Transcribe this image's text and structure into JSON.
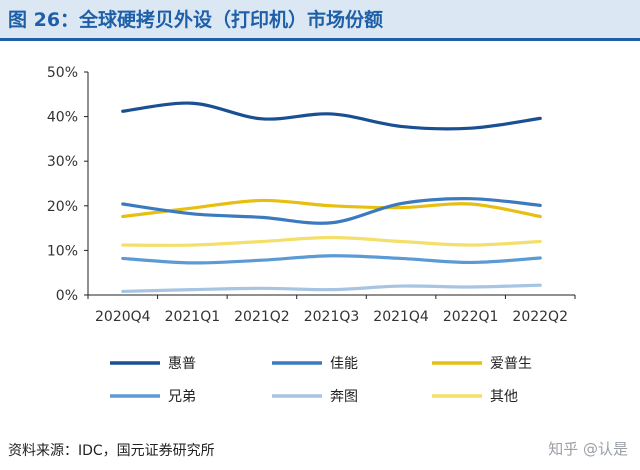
{
  "header": {
    "title": "图 26：全球硬拷贝外设（打印机）市场份额"
  },
  "footer": {
    "source": "资料来源：IDC，国元证券研究所",
    "watermark": "知乎 @认是"
  },
  "colors": {
    "title": "#1f5fa8",
    "header_bg": "#dbe8f4"
  },
  "chart_data": {
    "type": "line",
    "title": "",
    "xlabel": "",
    "ylabel": "",
    "categories": [
      "2020Q4",
      "2021Q1",
      "2021Q2",
      "2021Q3",
      "2021Q4",
      "2022Q1",
      "2022Q2"
    ],
    "ylim": [
      0,
      50
    ],
    "yticks": [
      0,
      10,
      20,
      30,
      40,
      50
    ],
    "ytick_labels": [
      "0%",
      "10%",
      "20%",
      "30%",
      "40%",
      "50%"
    ],
    "grid": false,
    "legend_position": "bottom",
    "series": [
      {
        "name": "惠普",
        "color": "#1a4f93",
        "values": [
          41.2,
          43.0,
          39.5,
          40.6,
          37.8,
          37.4,
          39.6
        ]
      },
      {
        "name": "佳能",
        "color": "#3c7abf",
        "values": [
          20.4,
          18.2,
          17.4,
          16.2,
          20.5,
          21.6,
          20.1
        ]
      },
      {
        "name": "爱普生",
        "color": "#e6bf10",
        "values": [
          17.6,
          19.5,
          21.2,
          20.0,
          19.6,
          20.4,
          17.6
        ]
      },
      {
        "name": "兄弟",
        "color": "#5b9bd5",
        "values": [
          8.2,
          7.2,
          7.8,
          8.8,
          8.2,
          7.3,
          8.3
        ]
      },
      {
        "name": "奔图",
        "color": "#a7c4e2",
        "values": [
          0.8,
          1.2,
          1.5,
          1.2,
          2.0,
          1.8,
          2.2
        ]
      },
      {
        "name": "其他",
        "color": "#f3df6a",
        "values": [
          11.2,
          11.2,
          12.0,
          12.9,
          12.0,
          11.2,
          12.0
        ]
      }
    ]
  }
}
